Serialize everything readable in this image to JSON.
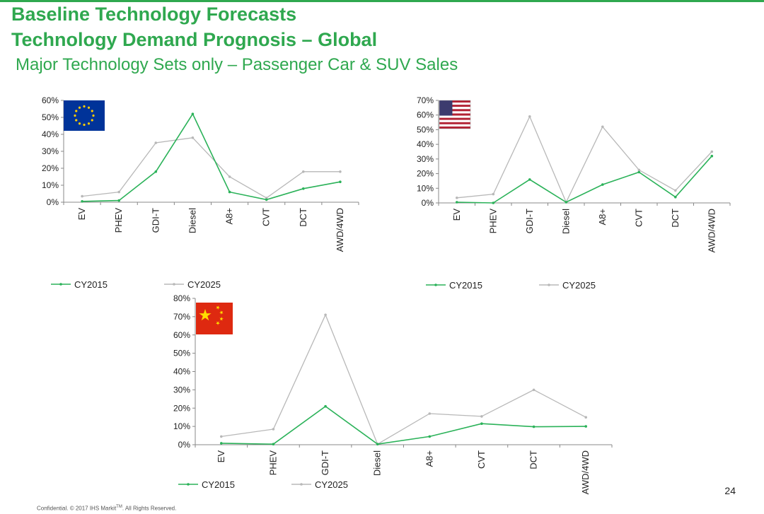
{
  "header": {
    "title_line1": "Baseline Technology Forecasts",
    "title_line2": "Technology Demand Prognosis – Global",
    "subtitle": "Major Technology Sets only – Passenger Car & SUV Sales"
  },
  "footer": {
    "confidential_prefix": "Confidential. © 2017 IHS Markit",
    "trademark": "TM",
    "confidential_suffix": ". All Rights Reserved."
  },
  "page_number": "24",
  "colors": {
    "accent": "#2fa84f",
    "cy2015": "#2bb259",
    "cy2025": "#b8b8b8"
  },
  "chart_data": [
    {
      "type": "line",
      "region_flag": "eu-flag",
      "categories": [
        "EV",
        "PHEV",
        "GDI-T",
        "Diesel",
        "A8+",
        "CVT",
        "DCT",
        "AWD/4WD"
      ],
      "ylim": [
        0,
        60
      ],
      "yticks": [
        0,
        10,
        20,
        30,
        40,
        50,
        60
      ],
      "tick_format": "%",
      "legend_position": "bottom-left",
      "series": [
        {
          "name": "CY2015",
          "values": [
            0.5,
            1,
            18,
            52,
            6,
            1.5,
            8,
            12
          ]
        },
        {
          "name": "CY2025",
          "values": [
            3.5,
            6,
            35,
            38,
            15,
            2.5,
            18,
            18
          ]
        }
      ]
    },
    {
      "type": "line",
      "region_flag": "us-flag",
      "categories": [
        "EV",
        "PHEV",
        "GDI-T",
        "Diesel",
        "A8+",
        "CVT",
        "DCT",
        "AWD/4WD"
      ],
      "ylim": [
        0,
        70
      ],
      "yticks": [
        0,
        10,
        20,
        30,
        40,
        50,
        60,
        70
      ],
      "tick_format": "%",
      "legend_position": "bottom-left",
      "series": [
        {
          "name": "CY2015",
          "values": [
            0.5,
            0,
            16,
            0.5,
            12.5,
            21,
            4,
            32
          ]
        },
        {
          "name": "CY2025",
          "values": [
            3.5,
            6,
            59,
            0.5,
            52,
            22.5,
            8.5,
            35
          ]
        }
      ]
    },
    {
      "type": "line",
      "region_flag": "china-flag",
      "categories": [
        "EV",
        "PHEV",
        "GDI-T",
        "Diesel",
        "A8+",
        "CVT",
        "DCT",
        "AWD/4WD"
      ],
      "ylim": [
        0,
        80
      ],
      "yticks": [
        0,
        10,
        20,
        30,
        40,
        50,
        60,
        70,
        80
      ],
      "tick_format": "%",
      "legend_position": "bottom-left",
      "series": [
        {
          "name": "CY2015",
          "values": [
            0.8,
            0.3,
            21,
            0.3,
            4.5,
            11.5,
            9.8,
            10
          ]
        },
        {
          "name": "CY2025",
          "values": [
            4.5,
            8.5,
            71,
            0.3,
            17,
            15.5,
            30,
            15
          ]
        }
      ]
    }
  ]
}
